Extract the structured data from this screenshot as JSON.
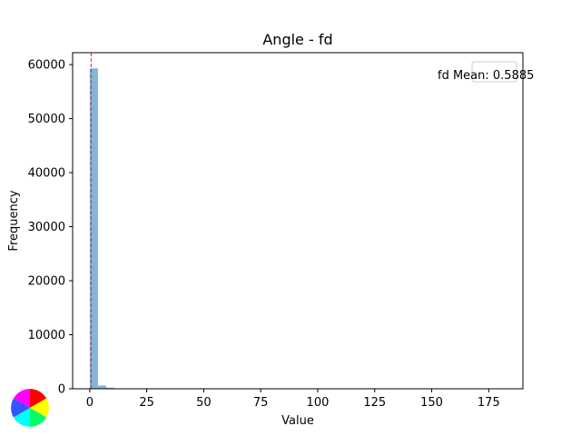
{
  "chart_data": {
    "type": "bar",
    "title": "Angle - fd",
    "xlabel": "Value",
    "ylabel": "Frequency",
    "xlim": [
      -7.5,
      190
    ],
    "ylim": [
      0,
      62200
    ],
    "xticks": [
      0,
      25,
      50,
      75,
      100,
      125,
      150,
      175
    ],
    "yticks": [
      0,
      10000,
      20000,
      30000,
      40000,
      50000,
      60000
    ],
    "bin_width": 3.6,
    "bins": [
      {
        "x0": 0,
        "value": 59300
      },
      {
        "x0": 3.6,
        "value": 600
      },
      {
        "x0": 7.2,
        "value": 200
      },
      {
        "x0": 10.8,
        "value": 50
      },
      {
        "x0": 14.4,
        "value": 20
      }
    ],
    "bar_color": "#1f77b4",
    "bar_opacity": 0.55,
    "mean_line": {
      "value": 0.5885,
      "color": "#d62728",
      "style": "dashed"
    },
    "legend": {
      "text": "fd Mean: 0.5885",
      "placement": "top-right"
    },
    "grid": false
  },
  "decorations": {
    "color_wheel": "color-wheel-icon"
  }
}
